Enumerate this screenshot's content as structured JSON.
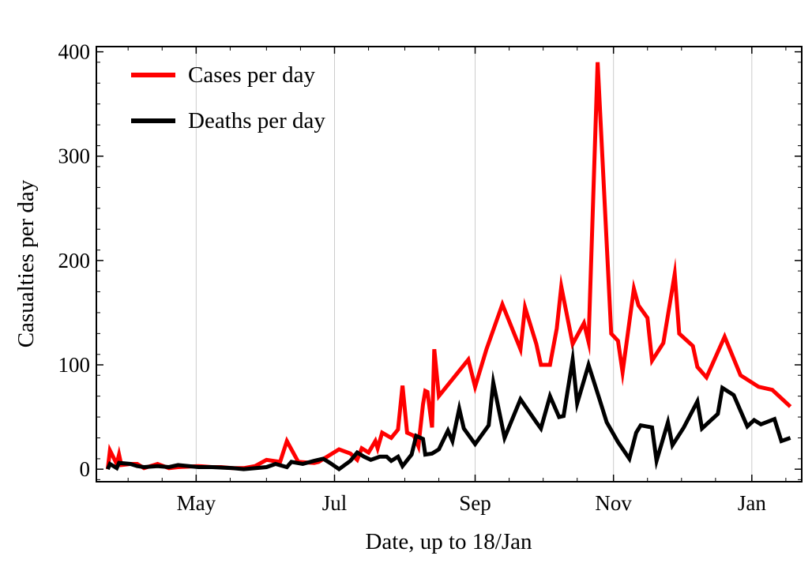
{
  "chart_data": {
    "type": "line",
    "xlabel": "Date, up to 18/Jan",
    "ylabel": "Casualties per day",
    "ylim": [
      -12,
      405
    ],
    "xlim": [
      "2020-03-18",
      "2021-01-23"
    ],
    "yticks": [
      0,
      100,
      200,
      300,
      400
    ],
    "x_month_ticks": [
      {
        "label": "May",
        "date": "2020-05-01"
      },
      {
        "label": "Jul",
        "date": "2020-07-01"
      },
      {
        "label": "Sep",
        "date": "2020-09-01"
      },
      {
        "label": "Nov",
        "date": "2020-11-01"
      },
      {
        "label": "Jan",
        "date": "2021-01-01"
      }
    ],
    "grid": "vertical at month ticks",
    "legend_position": "top-left",
    "series": [
      {
        "name": "Cases per day",
        "color": "#ff0000",
        "points": [
          [
            "2020-03-23",
            0
          ],
          [
            "2020-03-24",
            18
          ],
          [
            "2020-03-27",
            5
          ],
          [
            "2020-03-28",
            14
          ],
          [
            "2020-03-29",
            4
          ],
          [
            "2020-04-02",
            5
          ],
          [
            "2020-04-05",
            5
          ],
          [
            "2020-04-08",
            1
          ],
          [
            "2020-04-14",
            5
          ],
          [
            "2020-04-19",
            1
          ],
          [
            "2020-04-23",
            2
          ],
          [
            "2020-05-02",
            3
          ],
          [
            "2020-05-08",
            2
          ],
          [
            "2020-05-12",
            2
          ],
          [
            "2020-05-17",
            1
          ],
          [
            "2020-05-22",
            1
          ],
          [
            "2020-05-27",
            3
          ],
          [
            "2020-06-01",
            9
          ],
          [
            "2020-06-07",
            7
          ],
          [
            "2020-06-10",
            27
          ],
          [
            "2020-06-15",
            7
          ],
          [
            "2020-06-22",
            6
          ],
          [
            "2020-06-24",
            7
          ],
          [
            "2020-07-03",
            19
          ],
          [
            "2020-07-08",
            15
          ],
          [
            "2020-07-11",
            9
          ],
          [
            "2020-07-13",
            20
          ],
          [
            "2020-07-16",
            16
          ],
          [
            "2020-07-19",
            27
          ],
          [
            "2020-07-20",
            20
          ],
          [
            "2020-07-22",
            35
          ],
          [
            "2020-07-26",
            30
          ],
          [
            "2020-07-29",
            38
          ],
          [
            "2020-07-31",
            80
          ],
          [
            "2020-08-02",
            35
          ],
          [
            "2020-08-05",
            32
          ],
          [
            "2020-08-07",
            22
          ],
          [
            "2020-08-09",
            62
          ],
          [
            "2020-08-10",
            75
          ],
          [
            "2020-08-11",
            74
          ],
          [
            "2020-08-13",
            40
          ],
          [
            "2020-08-14",
            115
          ],
          [
            "2020-08-16",
            70
          ],
          [
            "2020-08-29",
            105
          ],
          [
            "2020-09-01",
            79
          ],
          [
            "2020-09-06",
            115
          ],
          [
            "2020-09-13",
            158
          ],
          [
            "2020-09-21",
            115
          ],
          [
            "2020-09-23",
            155
          ],
          [
            "2020-09-28",
            120
          ],
          [
            "2020-09-30",
            100
          ],
          [
            "2020-10-04",
            100
          ],
          [
            "2020-10-07",
            135
          ],
          [
            "2020-10-09",
            175
          ],
          [
            "2020-10-14",
            120
          ],
          [
            "2020-10-19",
            140
          ],
          [
            "2020-10-21",
            122
          ],
          [
            "2020-10-25",
            390
          ],
          [
            "2020-10-31",
            130
          ],
          [
            "2020-11-03",
            123
          ],
          [
            "2020-11-05",
            93
          ],
          [
            "2020-11-10",
            173
          ],
          [
            "2020-11-12",
            157
          ],
          [
            "2020-11-16",
            145
          ],
          [
            "2020-11-18",
            104
          ],
          [
            "2020-11-23",
            121
          ],
          [
            "2020-11-28",
            187
          ],
          [
            "2020-11-30",
            130
          ],
          [
            "2020-12-06",
            118
          ],
          [
            "2020-12-08",
            98
          ],
          [
            "2020-12-12",
            88
          ],
          [
            "2020-12-20",
            127
          ],
          [
            "2020-12-27",
            90
          ],
          [
            "2021-01-04",
            79
          ],
          [
            "2021-01-10",
            76
          ],
          [
            "2021-01-18",
            60
          ]
        ]
      },
      {
        "name": "Deaths per day",
        "color": "#000000",
        "points": [
          [
            "2020-03-23",
            0
          ],
          [
            "2020-03-24",
            5
          ],
          [
            "2020-03-27",
            1
          ],
          [
            "2020-03-28",
            6
          ],
          [
            "2020-04-02",
            5
          ],
          [
            "2020-04-05",
            3
          ],
          [
            "2020-04-08",
            2
          ],
          [
            "2020-04-14",
            3
          ],
          [
            "2020-04-19",
            2
          ],
          [
            "2020-04-23",
            4
          ],
          [
            "2020-05-02",
            2
          ],
          [
            "2020-05-08",
            2
          ],
          [
            "2020-05-17",
            1
          ],
          [
            "2020-05-22",
            0
          ],
          [
            "2020-06-01",
            2
          ],
          [
            "2020-06-05",
            5
          ],
          [
            "2020-06-10",
            2
          ],
          [
            "2020-06-12",
            7
          ],
          [
            "2020-06-17",
            5
          ],
          [
            "2020-06-22",
            8
          ],
          [
            "2020-06-26",
            10
          ],
          [
            "2020-06-29",
            6
          ],
          [
            "2020-07-03",
            0
          ],
          [
            "2020-07-08",
            8
          ],
          [
            "2020-07-11",
            16
          ],
          [
            "2020-07-14",
            12
          ],
          [
            "2020-07-17",
            9
          ],
          [
            "2020-07-21",
            12
          ],
          [
            "2020-07-24",
            12
          ],
          [
            "2020-07-26",
            8
          ],
          [
            "2020-07-29",
            12
          ],
          [
            "2020-07-31",
            3
          ],
          [
            "2020-08-04",
            14
          ],
          [
            "2020-08-06",
            32
          ],
          [
            "2020-08-09",
            29
          ],
          [
            "2020-08-10",
            14
          ],
          [
            "2020-08-13",
            15
          ],
          [
            "2020-08-16",
            19
          ],
          [
            "2020-08-20",
            37
          ],
          [
            "2020-08-22",
            27
          ],
          [
            "2020-08-25",
            58
          ],
          [
            "2020-08-27",
            39
          ],
          [
            "2020-09-01",
            24
          ],
          [
            "2020-09-07",
            42
          ],
          [
            "2020-09-09",
            83
          ],
          [
            "2020-09-14",
            30
          ],
          [
            "2020-09-21",
            67
          ],
          [
            "2020-09-28",
            45
          ],
          [
            "2020-09-30",
            39
          ],
          [
            "2020-10-04",
            70
          ],
          [
            "2020-10-08",
            50
          ],
          [
            "2020-10-10",
            51
          ],
          [
            "2020-10-14",
            105
          ],
          [
            "2020-10-16",
            63
          ],
          [
            "2020-10-21",
            100
          ],
          [
            "2020-10-26",
            66
          ],
          [
            "2020-10-29",
            45
          ],
          [
            "2020-11-03",
            26
          ],
          [
            "2020-11-08",
            10
          ],
          [
            "2020-11-11",
            35
          ],
          [
            "2020-11-13",
            42
          ],
          [
            "2020-11-18",
            40
          ],
          [
            "2020-11-20",
            8
          ],
          [
            "2020-11-25",
            45
          ],
          [
            "2020-11-27",
            23
          ],
          [
            "2020-12-02",
            40
          ],
          [
            "2020-12-08",
            65
          ],
          [
            "2020-12-10",
            39
          ],
          [
            "2020-12-17",
            53
          ],
          [
            "2020-12-19",
            78
          ],
          [
            "2020-12-24",
            71
          ],
          [
            "2020-12-30",
            41
          ],
          [
            "2021-01-02",
            47
          ],
          [
            "2021-01-05",
            43
          ],
          [
            "2021-01-11",
            48
          ],
          [
            "2021-01-14",
            27
          ],
          [
            "2021-01-18",
            30
          ]
        ]
      }
    ]
  }
}
